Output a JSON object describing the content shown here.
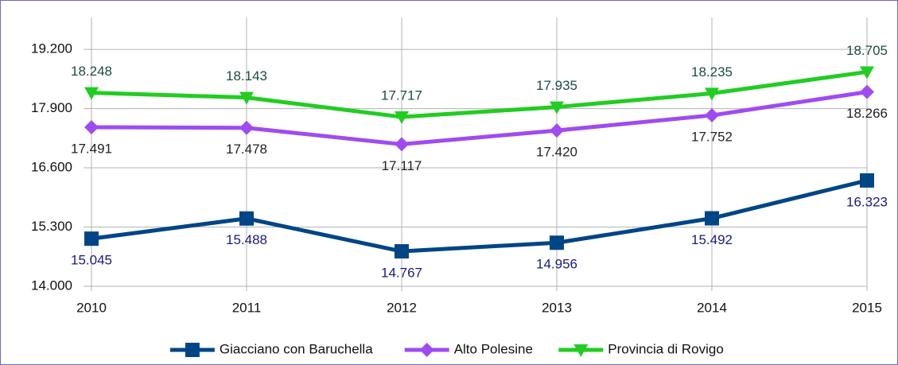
{
  "chart_data": {
    "type": "line",
    "categories": [
      "2010",
      "2011",
      "2012",
      "2013",
      "2014",
      "2015"
    ],
    "series": [
      {
        "name": "Giacciano con Baruchella",
        "color": "#004586",
        "marker": "square",
        "label_position": "below",
        "label_color": "#1a1a80",
        "values": [
          15045,
          15488,
          14767,
          14956,
          15492,
          16323
        ],
        "value_labels": [
          "15.045",
          "15.488",
          "14.767",
          "14.956",
          "15.492",
          "16.323"
        ]
      },
      {
        "name": "Alto Polesine",
        "color": "#9e4cf0",
        "marker": "diamond",
        "label_position": "below",
        "label_color": "#222222",
        "values": [
          17491,
          17478,
          17117,
          17420,
          17752,
          18266
        ],
        "value_labels": [
          "17.491",
          "17.478",
          "17.117",
          "17.420",
          "17.752",
          "18.266"
        ]
      },
      {
        "name": "Provincia di Rovigo",
        "color": "#22cc22",
        "marker": "triangle-down",
        "label_position": "above",
        "label_color": "#1e4a44",
        "values": [
          18248,
          18143,
          17717,
          17935,
          18235,
          18705
        ],
        "value_labels": [
          "18.248",
          "18.143",
          "17.717",
          "17.935",
          "18.235",
          "18.705"
        ]
      }
    ],
    "ylim": [
      14000,
      19900
    ],
    "yticks": [
      {
        "value": 14000,
        "label": "14.000"
      },
      {
        "value": 15300,
        "label": "15.300"
      },
      {
        "value": 16600,
        "label": "16.600"
      },
      {
        "value": 17900,
        "label": "17.900"
      },
      {
        "value": 19200,
        "label": "19.200"
      }
    ],
    "grid": true,
    "legend": "bottom"
  }
}
